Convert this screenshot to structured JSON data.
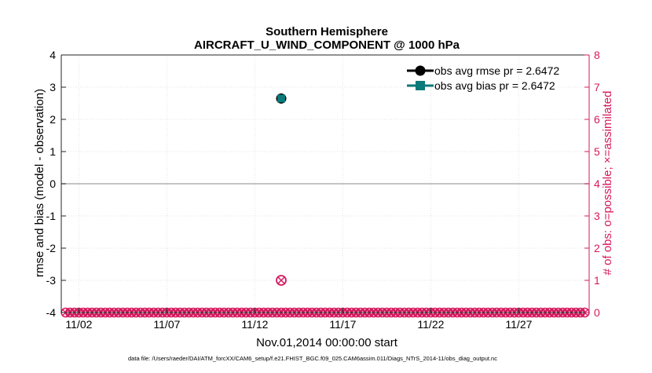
{
  "colors": {
    "rmse": "#000000",
    "bias": "#0a7a7a",
    "obs_count": "#d6195e",
    "zero_line": "#b0b0b0",
    "axis": "#262626"
  },
  "chart_data": {
    "type": "scatter",
    "title": "Southern Hemisphere",
    "subtitle": "AIRCRAFT_U_WIND_COMPONENT @ 1000 hPa",
    "xlabel": "Nov.01,2014 00:00:00 start",
    "ylabel": "rmse and bias (model - observation)",
    "y2label": "# of obs: o=possible; ×=assimilated",
    "footnote": "data file: /Users/raeder/DAI/ATM_forcXX/CAM6_setup/f.e21.FHIST_BGC.f09_025.CAM6assim.011/Diags_NTrS_2014-11/obs_diag_output.nc",
    "xlim": [
      0,
      30
    ],
    "ylim": [
      -4,
      4
    ],
    "y2lim": [
      0,
      8
    ],
    "x_ticks": [
      {
        "value": 1,
        "label": "11/02"
      },
      {
        "value": 6,
        "label": "11/07"
      },
      {
        "value": 11,
        "label": "11/12"
      },
      {
        "value": 16,
        "label": "11/17"
      },
      {
        "value": 21,
        "label": "11/22"
      },
      {
        "value": 26,
        "label": "11/27"
      }
    ],
    "y_ticks": [
      {
        "value": 4,
        "label": "4"
      },
      {
        "value": 3,
        "label": "3"
      },
      {
        "value": 2,
        "label": "2"
      },
      {
        "value": 1,
        "label": "1"
      },
      {
        "value": 0,
        "label": "0"
      },
      {
        "value": -1,
        "label": "-1"
      },
      {
        "value": -2,
        "label": "-2"
      },
      {
        "value": -3,
        "label": "-3"
      },
      {
        "value": -4,
        "label": "-4"
      }
    ],
    "y2_ticks": [
      {
        "value": 8,
        "label": "8"
      },
      {
        "value": 7,
        "label": "7"
      },
      {
        "value": 6,
        "label": "6"
      },
      {
        "value": 5,
        "label": "5"
      },
      {
        "value": 4,
        "label": "4"
      },
      {
        "value": 3,
        "label": "3"
      },
      {
        "value": 2,
        "label": "2"
      },
      {
        "value": 1,
        "label": "1"
      },
      {
        "value": 0,
        "label": "0"
      }
    ],
    "zero_line": 0,
    "legend_position": "top-right",
    "series": [
      {
        "name": "obs avg rmse pr = 2.6472",
        "key": "rmse",
        "marker": "circle",
        "x": [
          12.5
        ],
        "y": [
          2.6472
        ]
      },
      {
        "name": "obs avg bias pr = 2.6472",
        "key": "bias",
        "marker": "square",
        "x": [
          12.5
        ],
        "y": [
          2.6472
        ]
      }
    ],
    "obs_count": {
      "x_start": 0.25,
      "x_step": 0.25,
      "count": 119,
      "possible_value": 0,
      "nonzero": [
        {
          "x": 12.5,
          "possible": 1,
          "assimilated": 1
        }
      ]
    }
  }
}
